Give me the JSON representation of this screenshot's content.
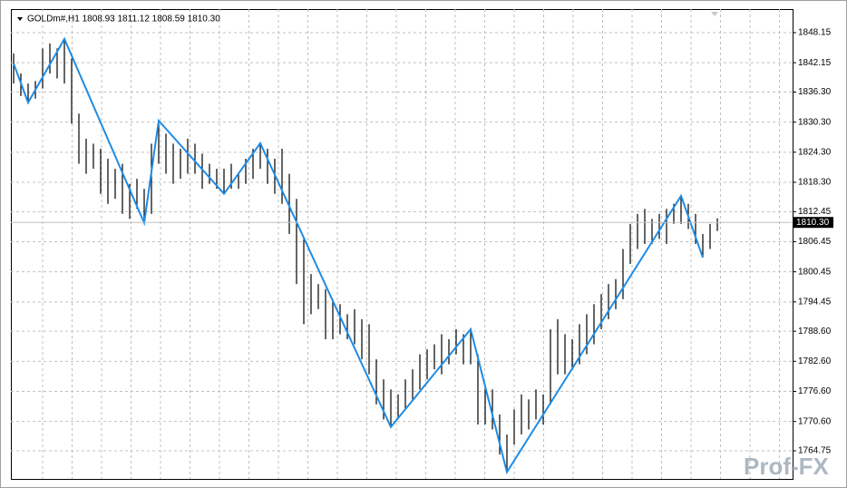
{
  "chart_data": {
    "type": "ohlc",
    "title": "GOLDm#,H1  1808.93 1811.12 1808.59 1810.30",
    "color": "#000000",
    "high": [
      1844,
      1840,
      1838,
      1838.5,
      1845,
      1846,
      1845,
      1846.9,
      1843,
      1832,
      1827,
      1826,
      1825,
      1823,
      1821,
      1822,
      1818,
      1819,
      1817,
      1826,
      1830.6,
      1828,
      1826,
      1825,
      1827,
      1826,
      1824,
      1822,
      1821,
      1821,
      1822,
      1820,
      1823,
      1825,
      1826.1,
      1825,
      1823,
      1825,
      1820,
      1815,
      1807,
      1800,
      1798,
      1797,
      1795,
      1794,
      1792,
      1793,
      1791,
      1790,
      1783,
      1779,
      1777,
      1776,
      1779,
      1781,
      1784,
      1785,
      1786,
      1788,
      1787,
      1789,
      1788,
      1789,
      1784,
      1778,
      1777,
      1772,
      1768,
      1773,
      1776,
      1775,
      1777,
      1776,
      1789,
      1791,
      1788,
      1787,
      1790,
      1792,
      1794,
      1796,
      1798,
      1799,
      1805,
      1810,
      1812,
      1813,
      1811,
      1812,
      1813,
      1814,
      1815.6,
      1814,
      1812,
      1808,
      1810,
      1811.12
    ],
    "low": [
      1838,
      1835.5,
      1834.2,
      1835,
      1837,
      1840,
      1839,
      1838,
      1830,
      1822,
      1820,
      1821,
      1816,
      1814,
      1815,
      1812,
      1811,
      1813,
      1810.2,
      1812,
      1822,
      1820,
      1818,
      1819,
      1820,
      1820,
      1817,
      1818,
      1817,
      1816,
      1817,
      1817,
      1818,
      1819,
      1821,
      1818,
      1816,
      1814,
      1808,
      1798,
      1790,
      1792,
      1793,
      1787,
      1787,
      1788,
      1787,
      1786,
      1783,
      1780,
      1774,
      1771,
      1769.5,
      1771,
      1773,
      1775,
      1777,
      1779,
      1781,
      1780,
      1782,
      1784,
      1782,
      1782,
      1770,
      1770,
      1769,
      1764,
      1760.5,
      1766,
      1768,
      1769,
      1771,
      1770,
      1774,
      1780,
      1780,
      1781,
      1782,
      1784,
      1786,
      1789,
      1791,
      1793,
      1795,
      1802,
      1805,
      1806,
      1806,
      1807,
      1806,
      1810,
      1810,
      1809,
      1806,
      1803.3,
      1805,
      1808.59
    ],
    "zigzag": {
      "color": "#1e8ce6",
      "x": [
        0,
        2,
        7,
        18,
        20,
        29,
        34,
        52,
        63,
        68,
        92,
        95
      ],
      "values": [
        1842,
        1834.2,
        1846.9,
        1810.2,
        1830.6,
        1816,
        1826.1,
        1769.5,
        1789,
        1760.5,
        1815.6,
        1803.3
      ]
    },
    "ylim": [
      1759.14,
      1852.85
    ],
    "yticks": [
      1848.15,
      1842.15,
      {
        "value": 1836.3,
        "label": "1836.30"
      },
      {
        "value": 1830.3,
        "label": "1830.30"
      },
      {
        "value": 1824.3,
        "label": "1824.30"
      },
      {
        "value": 1818.3,
        "label": "1818.30"
      },
      1812.45,
      {
        "value": 1806.45,
        "label": "1806.45"
      },
      {
        "value": 1800.45,
        "label": "1800.45"
      },
      {
        "value": 1794.45,
        "label": "1794.45"
      },
      {
        "value": 1788.6,
        "label": "1788.60"
      },
      {
        "value": 1782.6,
        "label": "1782.60"
      },
      {
        "value": 1776.6,
        "label": "1776.60"
      },
      {
        "value": 1770.6,
        "label": "1770.60"
      },
      1764.75
    ],
    "grid": true,
    "current_price": {
      "value": 1810.3,
      "label": "1810.30"
    },
    "watermark": "Prof-FX"
  }
}
